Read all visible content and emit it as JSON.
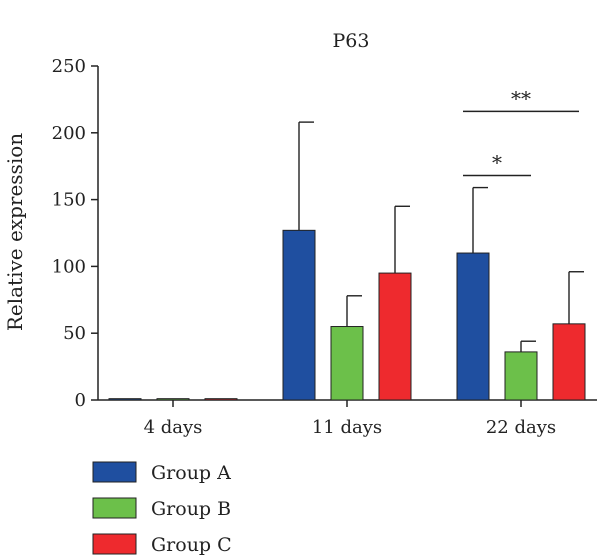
{
  "chart_data": {
    "type": "bar",
    "title": "P63",
    "xlabel": "",
    "ylabel": "Relative expression",
    "ylim": [
      0,
      250
    ],
    "yticks": [
      0,
      50,
      100,
      150,
      200,
      250
    ],
    "grid": false,
    "legend_position": "bottom-left",
    "categories": [
      "4 days",
      "11 days",
      "22 days"
    ],
    "series": [
      {
        "name": "Group A",
        "color": "#1f4fa0",
        "values": [
          1,
          127,
          110
        ],
        "errors": [
          0,
          81,
          49
        ]
      },
      {
        "name": "Group B",
        "color": "#6cc04a",
        "values": [
          1,
          55,
          36
        ],
        "errors": [
          0,
          23,
          8
        ]
      },
      {
        "name": "Group C",
        "color": "#ee2a2e",
        "values": [
          1,
          95,
          57
        ],
        "errors": [
          0,
          50,
          39
        ]
      }
    ],
    "annotations": [
      {
        "label": "*",
        "category": "22 days",
        "from_series": 0,
        "to_series": 1,
        "y": 168
      },
      {
        "label": "**",
        "category": "22 days",
        "from_series": 0,
        "to_series": 2,
        "y": 216
      }
    ]
  }
}
